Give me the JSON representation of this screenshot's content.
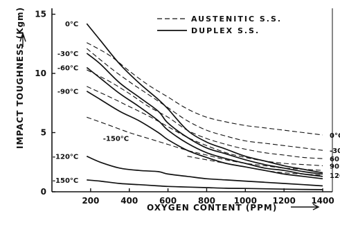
{
  "chart_data": {
    "type": "line",
    "xlabel": "OXYGEN CONTENT (PPM)",
    "ylabel": "IMPACT TOUGHNESS (Kgm)",
    "xlim": [
      0,
      1450
    ],
    "ylim": [
      0,
      15.5
    ],
    "xticks": [
      "200",
      "400",
      "600",
      "800",
      "1000",
      "1200",
      "1400"
    ],
    "yticks": [
      "0",
      "5",
      "10",
      "15"
    ],
    "grid": false,
    "legend_position": "top-center",
    "legend": [
      {
        "label": "AUSTENITIC S.S.",
        "style": "dashed"
      },
      {
        "label": "DUPLEX S.S.",
        "style": "solid"
      }
    ],
    "series": [
      {
        "label": "0°C",
        "group": "DUPLEX S.S.",
        "style": "solid",
        "points": [
          [
            180,
            14.2
          ],
          [
            250,
            12.8
          ],
          [
            350,
            10.8
          ],
          [
            450,
            9.2
          ],
          [
            550,
            7.8
          ],
          [
            600,
            7.0
          ],
          [
            700,
            5.2
          ],
          [
            800,
            4.2
          ],
          [
            900,
            3.6
          ],
          [
            1000,
            3.0
          ],
          [
            1100,
            2.6
          ],
          [
            1200,
            2.2
          ],
          [
            1300,
            1.9
          ],
          [
            1400,
            1.6
          ]
        ]
      },
      {
        "label": "-30°C",
        "group": "DUPLEX S.S.",
        "style": "solid",
        "points": [
          [
            180,
            11.7
          ],
          [
            250,
            10.8
          ],
          [
            350,
            9.2
          ],
          [
            450,
            8.0
          ],
          [
            550,
            6.8
          ],
          [
            600,
            5.8
          ],
          [
            700,
            4.6
          ],
          [
            800,
            3.7
          ],
          [
            900,
            3.2
          ],
          [
            1000,
            2.7
          ],
          [
            1100,
            2.3
          ],
          [
            1200,
            2.0
          ],
          [
            1300,
            1.7
          ],
          [
            1400,
            1.5
          ]
        ]
      },
      {
        "label": "-60°C",
        "group": "DUPLEX S.S.",
        "style": "solid",
        "points": [
          [
            180,
            10.5
          ],
          [
            250,
            9.6
          ],
          [
            350,
            8.3
          ],
          [
            450,
            7.2
          ],
          [
            550,
            6.0
          ],
          [
            600,
            5.2
          ],
          [
            700,
            4.1
          ],
          [
            800,
            3.3
          ],
          [
            900,
            2.8
          ],
          [
            1000,
            2.4
          ],
          [
            1100,
            2.0
          ],
          [
            1200,
            1.8
          ],
          [
            1300,
            1.5
          ],
          [
            1400,
            1.3
          ]
        ]
      },
      {
        "label": "-90°C",
        "group": "DUPLEX S.S.",
        "style": "solid",
        "points": [
          [
            180,
            8.5
          ],
          [
            250,
            7.8
          ],
          [
            350,
            6.8
          ],
          [
            450,
            6.0
          ],
          [
            550,
            5.0
          ],
          [
            600,
            4.4
          ],
          [
            700,
            3.5
          ],
          [
            800,
            2.9
          ],
          [
            900,
            2.4
          ],
          [
            1000,
            2.1
          ],
          [
            1100,
            1.8
          ],
          [
            1200,
            1.5
          ],
          [
            1300,
            1.3
          ],
          [
            1400,
            1.1
          ]
        ]
      },
      {
        "label": "-120°C",
        "group": "DUPLEX S.S.",
        "style": "solid",
        "points": [
          [
            180,
            3.0
          ],
          [
            250,
            2.5
          ],
          [
            350,
            2.0
          ],
          [
            450,
            1.8
          ],
          [
            550,
            1.7
          ],
          [
            600,
            1.5
          ],
          [
            700,
            1.3
          ],
          [
            800,
            1.1
          ],
          [
            900,
            1.0
          ],
          [
            1000,
            0.9
          ],
          [
            1100,
            0.8
          ],
          [
            1200,
            0.7
          ],
          [
            1300,
            0.6
          ],
          [
            1400,
            0.5
          ]
        ]
      },
      {
        "label": "-150°C",
        "group": "DUPLEX S.S.",
        "style": "solid",
        "points": [
          [
            180,
            1.0
          ],
          [
            250,
            0.9
          ],
          [
            350,
            0.7
          ],
          [
            450,
            0.6
          ],
          [
            550,
            0.5
          ],
          [
            600,
            0.45
          ],
          [
            700,
            0.4
          ],
          [
            800,
            0.35
          ],
          [
            900,
            0.3
          ],
          [
            1000,
            0.28
          ],
          [
            1100,
            0.25
          ],
          [
            1200,
            0.22
          ],
          [
            1300,
            0.2
          ],
          [
            1400,
            0.18
          ]
        ]
      },
      {
        "label": "0°C",
        "group": "AUSTENITIC S.S.",
        "style": "dashed",
        "points": [
          [
            180,
            12.6
          ],
          [
            300,
            11.5
          ],
          [
            400,
            10.2
          ],
          [
            500,
            9.0
          ],
          [
            600,
            8.0
          ],
          [
            700,
            7.0
          ],
          [
            800,
            6.3
          ],
          [
            900,
            5.9
          ],
          [
            1000,
            5.6
          ],
          [
            1100,
            5.4
          ],
          [
            1200,
            5.2
          ],
          [
            1300,
            5.0
          ],
          [
            1400,
            4.8
          ]
        ]
      },
      {
        "label": "-30",
        "group": "AUSTENITIC S.S.",
        "style": "dashed",
        "points": [
          [
            180,
            12.1
          ],
          [
            300,
            10.5
          ],
          [
            400,
            9.3
          ],
          [
            500,
            8.2
          ],
          [
            600,
            7.1
          ],
          [
            700,
            6.0
          ],
          [
            800,
            5.2
          ],
          [
            900,
            4.7
          ],
          [
            1000,
            4.3
          ],
          [
            1100,
            4.1
          ],
          [
            1200,
            3.9
          ],
          [
            1300,
            3.7
          ],
          [
            1400,
            3.5
          ]
        ]
      },
      {
        "label": "60",
        "group": "AUSTENITIC S.S.",
        "style": "dashed",
        "points": [
          [
            180,
            10.3
          ],
          [
            300,
            9.3
          ],
          [
            400,
            8.3
          ],
          [
            500,
            7.2
          ],
          [
            600,
            6.3
          ],
          [
            700,
            5.2
          ],
          [
            800,
            4.5
          ],
          [
            900,
            4.0
          ],
          [
            1000,
            3.6
          ],
          [
            1100,
            3.3
          ],
          [
            1200,
            3.1
          ],
          [
            1300,
            2.9
          ],
          [
            1400,
            2.8
          ]
        ]
      },
      {
        "label": "90",
        "group": "AUSTENITIC S.S.",
        "style": "dashed",
        "points": [
          [
            180,
            8.9
          ],
          [
            300,
            8.0
          ],
          [
            400,
            7.2
          ],
          [
            500,
            6.4
          ],
          [
            600,
            5.5
          ],
          [
            700,
            4.6
          ],
          [
            800,
            3.9
          ],
          [
            900,
            3.3
          ],
          [
            1000,
            2.9
          ],
          [
            1100,
            2.6
          ],
          [
            1200,
            2.4
          ],
          [
            1300,
            2.3
          ],
          [
            1400,
            2.2
          ]
        ]
      },
      {
        "label": "-150°C",
        "group": "AUSTENITIC S.S.",
        "style": "dashed",
        "points": [
          [
            180,
            6.3
          ],
          [
            300,
            5.6
          ],
          [
            400,
            5.0
          ],
          [
            500,
            4.5
          ],
          [
            600,
            4.0
          ],
          [
            700,
            3.5
          ],
          [
            800,
            3.1
          ],
          [
            900,
            2.7
          ],
          [
            1000,
            2.4
          ],
          [
            1100,
            2.2
          ],
          [
            1200,
            2.0
          ],
          [
            1300,
            1.9
          ],
          [
            1400,
            1.8
          ]
        ]
      },
      {
        "label": "120",
        "group": "AUSTENITIC S.S.",
        "style": "dashed",
        "points": [
          [
            700,
            3.0
          ],
          [
            800,
            2.7
          ],
          [
            900,
            2.4
          ],
          [
            1000,
            2.1
          ],
          [
            1100,
            1.8
          ],
          [
            1200,
            1.6
          ],
          [
            1300,
            1.5
          ],
          [
            1400,
            1.4
          ]
        ]
      }
    ]
  }
}
